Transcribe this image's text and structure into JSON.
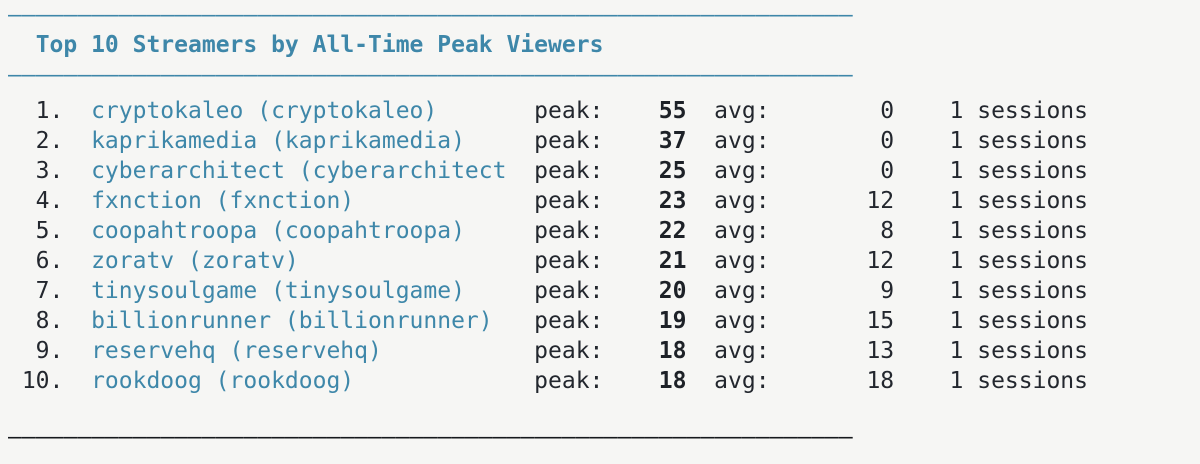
{
  "colors": {
    "background": "#f6f6f4",
    "accent_teal": "#3e87a9",
    "text_dark": "#23272e",
    "rule_dark": "#16191d"
  },
  "header": {
    "rule": "—————————————————————————————————————————————————————————————",
    "title": "Top 10 Streamers by All-Time Peak Viewers"
  },
  "footer": {
    "rule": "—————————————————————————————————————————————————————————————"
  },
  "labels": {
    "peak": "peak:",
    "avg": "avg:",
    "sessions": "sessions"
  },
  "streamers": [
    {
      "rank_label": "1.",
      "display_name": "cryptokaleo (cryptokaleo)",
      "peak": "55",
      "avg": "0",
      "sessions": "1"
    },
    {
      "rank_label": "2.",
      "display_name": "kaprikamedia (kaprikamedia)",
      "peak": "37",
      "avg": "0",
      "sessions": "1"
    },
    {
      "rank_label": "3.",
      "display_name": "cyberarchitect (cyberarchitect",
      "peak": "25",
      "avg": "0",
      "sessions": "1"
    },
    {
      "rank_label": "4.",
      "display_name": "fxnction (fxnction)",
      "peak": "23",
      "avg": "12",
      "sessions": "1"
    },
    {
      "rank_label": "5.",
      "display_name": "coopahtroopa (coopahtroopa)",
      "peak": "22",
      "avg": "8",
      "sessions": "1"
    },
    {
      "rank_label": "6.",
      "display_name": "zoratv (zoratv)",
      "peak": "21",
      "avg": "12",
      "sessions": "1"
    },
    {
      "rank_label": "7.",
      "display_name": "tinysoulgame (tinysoulgame)",
      "peak": "20",
      "avg": "9",
      "sessions": "1"
    },
    {
      "rank_label": "8.",
      "display_name": "billionrunner (billionrunner)",
      "peak": "19",
      "avg": "15",
      "sessions": "1"
    },
    {
      "rank_label": "9.",
      "display_name": "reservehq (reservehq)",
      "peak": "18",
      "avg": "13",
      "sessions": "1"
    },
    {
      "rank_label": "10.",
      "display_name": "rookdoog (rookdoog)",
      "peak": "18",
      "avg": "18",
      "sessions": "1"
    }
  ]
}
